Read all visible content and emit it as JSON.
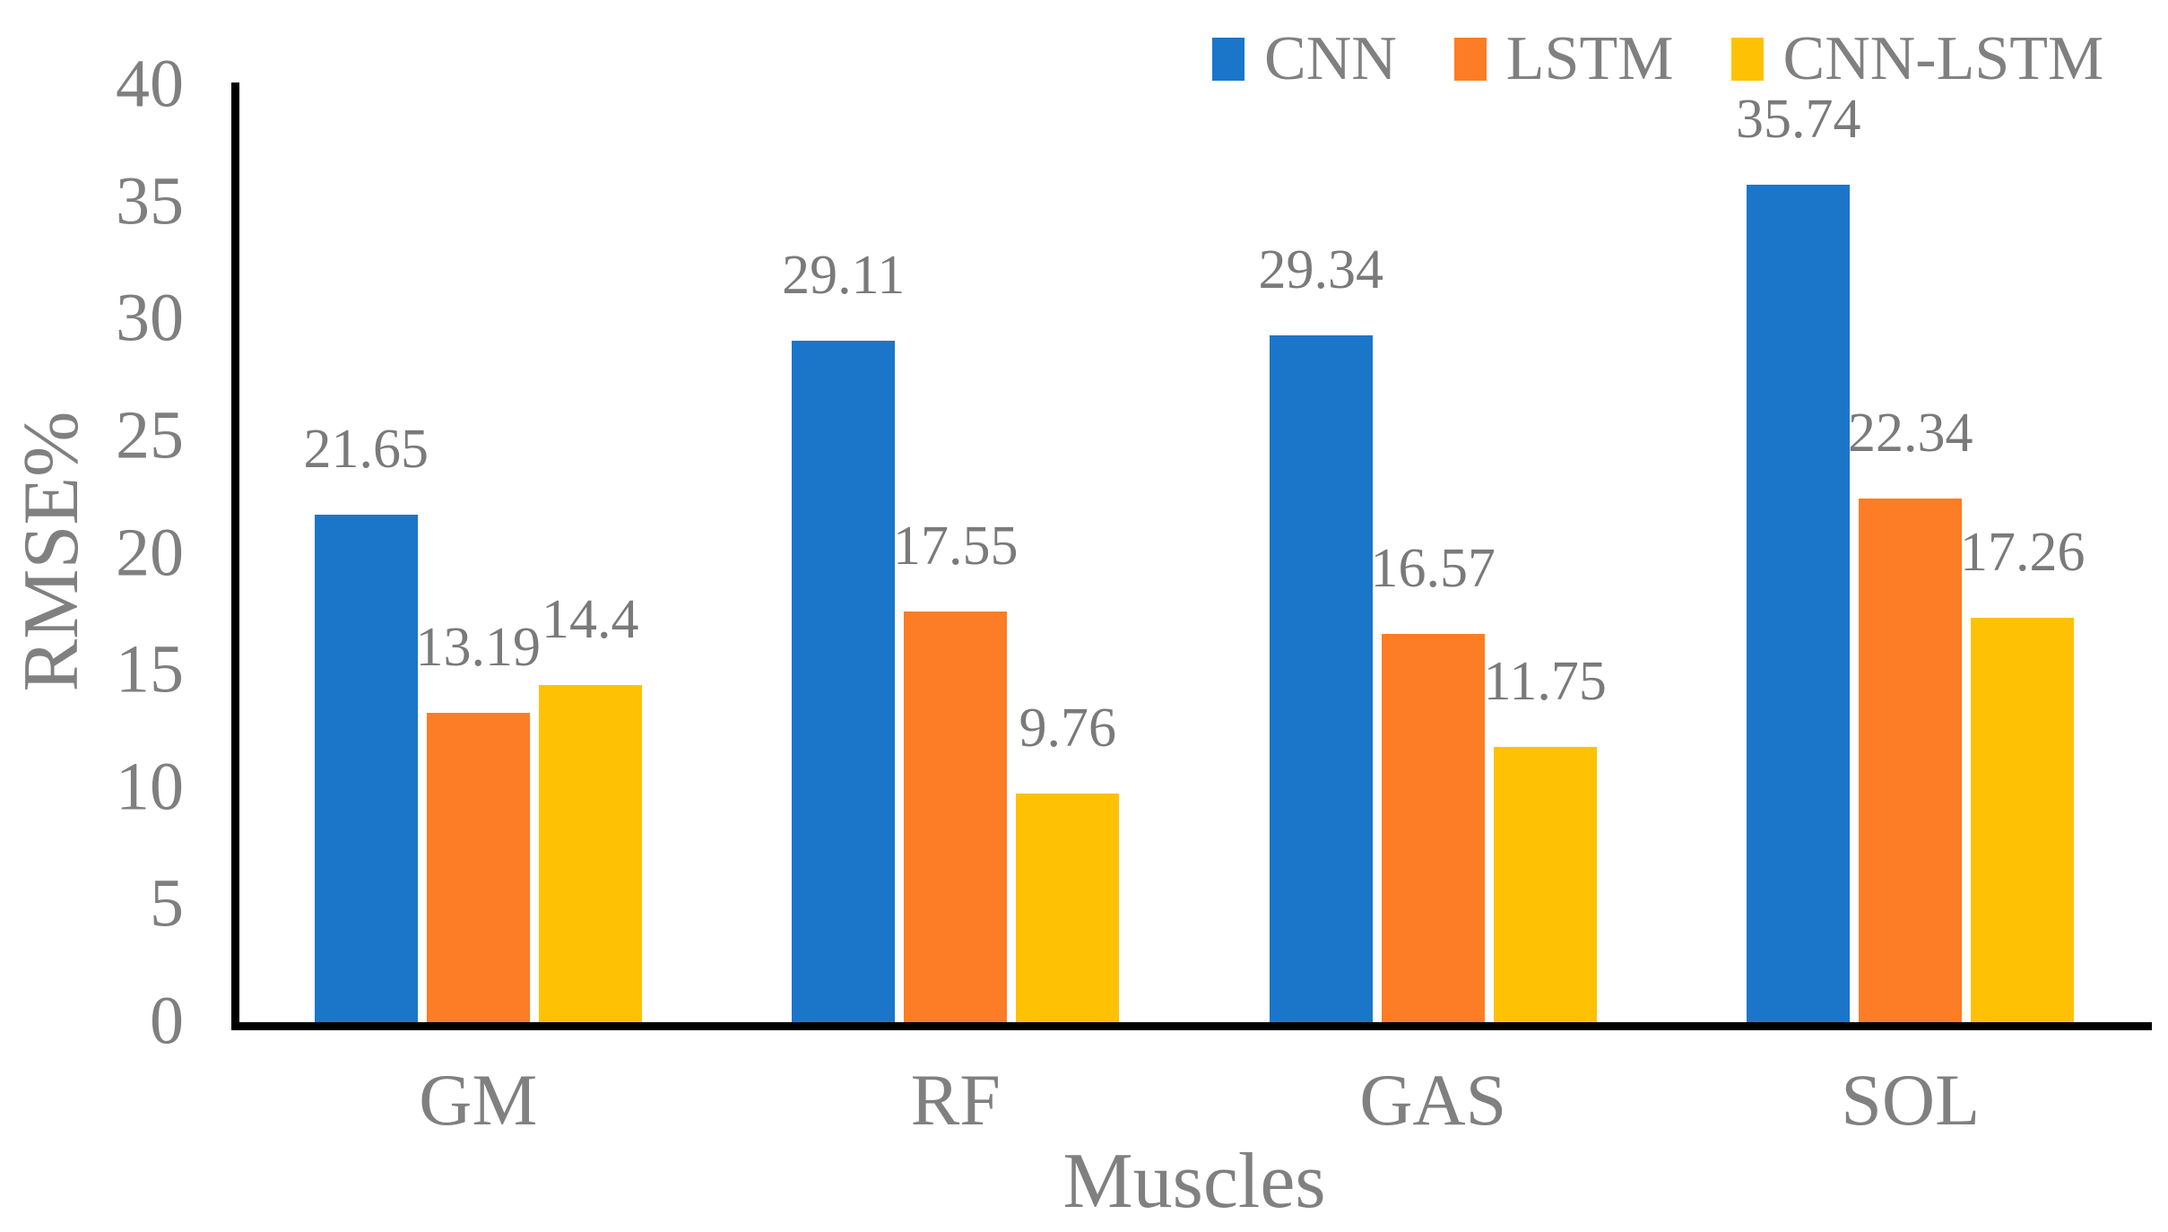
{
  "chart_data": {
    "type": "bar",
    "categories": [
      "GM",
      "RF",
      "GAS",
      "SOL"
    ],
    "series": [
      {
        "name": "CNN",
        "color": "#1b76c9",
        "values": [
          21.65,
          29.11,
          29.34,
          35.74
        ]
      },
      {
        "name": "LSTM",
        "color": "#fc7d25",
        "values": [
          13.19,
          17.55,
          16.57,
          22.34
        ]
      },
      {
        "name": "CNN-LSTM",
        "color": "#ffc103",
        "values": [
          14.4,
          9.76,
          11.75,
          17.26
        ]
      }
    ],
    "xlabel": "Muscles",
    "ylabel": "RMSE%",
    "ylim": [
      0,
      40
    ],
    "yticks": [
      0,
      5,
      10,
      15,
      20,
      25,
      30,
      35,
      40
    ],
    "grid": false,
    "legend_position": "top-right",
    "data_labels": true,
    "axis_line_color": "#000000",
    "text_color": "#7f7f7f"
  }
}
